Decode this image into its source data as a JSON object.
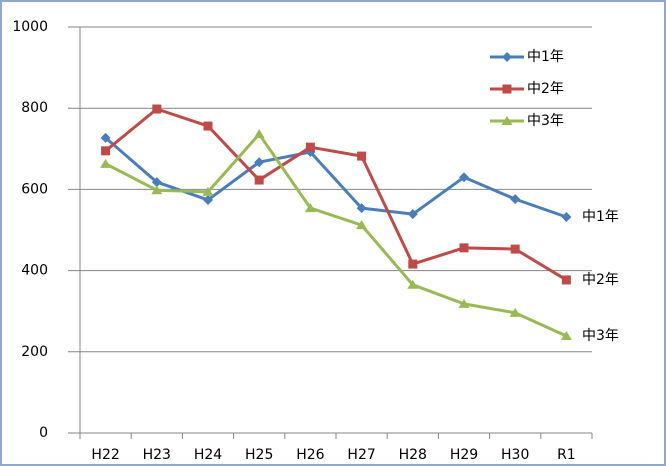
{
  "chart_data": {
    "type": "line",
    "categories": [
      "H22",
      "H23",
      "H24",
      "H25",
      "H26",
      "H27",
      "H28",
      "H29",
      "H30",
      "R1"
    ],
    "series": [
      {
        "name": "中1年",
        "color": "#4a7ebb",
        "marker": "diamond",
        "values": [
          727,
          618,
          574,
          667,
          692,
          554,
          539,
          630,
          576,
          532
        ]
      },
      {
        "name": "中2年",
        "color": "#be4b48",
        "marker": "square",
        "values": [
          695,
          798,
          756,
          623,
          704,
          682,
          416,
          456,
          453,
          377
        ]
      },
      {
        "name": "中3年",
        "color": "#98b954",
        "marker": "triangle",
        "values": [
          663,
          598,
          594,
          736,
          554,
          512,
          365,
          318,
          296,
          239
        ]
      }
    ],
    "ylim": [
      0,
      1000
    ],
    "yticks": [
      0,
      200,
      400,
      600,
      800,
      1000
    ],
    "grid": true,
    "legend": "top-right",
    "end_labels": true
  }
}
